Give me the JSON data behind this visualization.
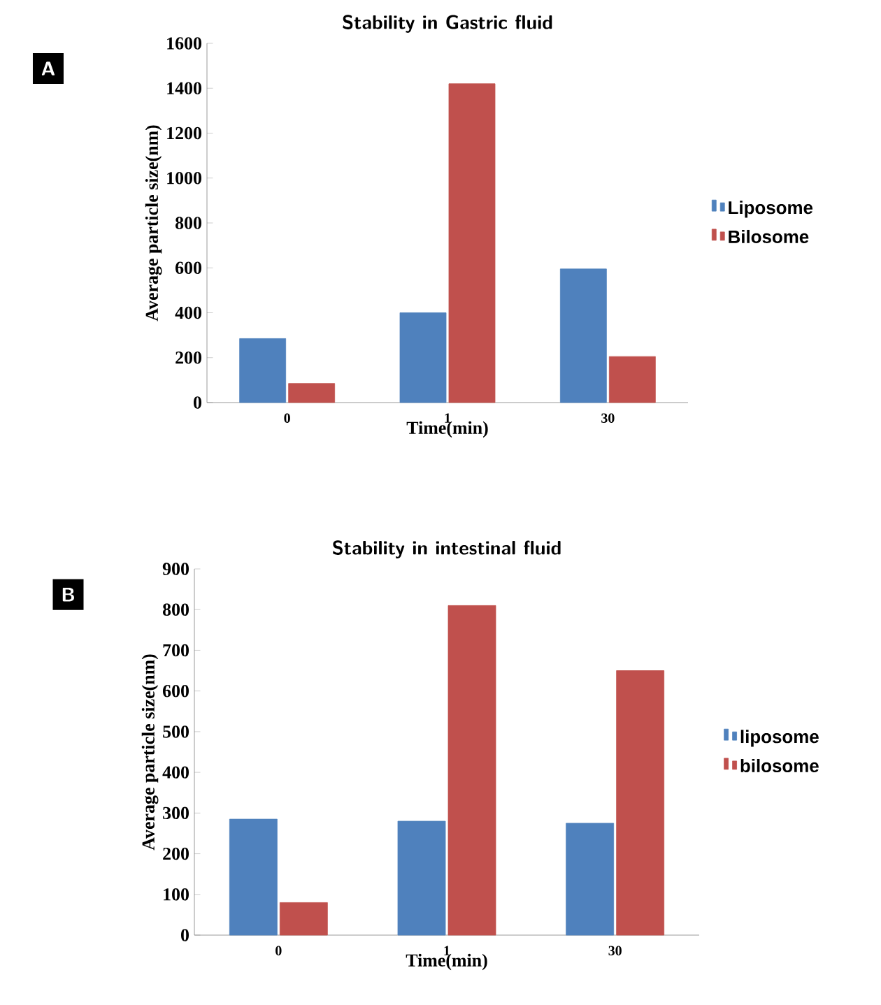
{
  "chart_data": [
    {
      "type": "bar",
      "title": "Stability in Gastric fluid",
      "xlabel": "Time(min)",
      "ylabel": "Average particle size(nm)",
      "categories": [
        "0",
        "1",
        "30"
      ],
      "series": [
        {
          "name": "Liposome",
          "color": "#4f81bd",
          "values": [
            285,
            400,
            595
          ]
        },
        {
          "name": "Bilosome",
          "color": "#c0504d",
          "values": [
            85,
            1420,
            205
          ]
        }
      ],
      "ylim": [
        0,
        1600
      ],
      "yticks": [
        0,
        200,
        400,
        600,
        800,
        1000,
        1200,
        1400,
        1600
      ],
      "legend": "right",
      "annotations": [
        "A"
      ]
    },
    {
      "type": "bar",
      "title": "Stability in intestinal fluid",
      "xlabel": "Time(min)",
      "ylabel": "Average particle size(nm)",
      "categories": [
        "0",
        "1",
        "30"
      ],
      "series": [
        {
          "name": "liposome",
          "color": "#4f81bd",
          "values": [
            285,
            280,
            275
          ]
        },
        {
          "name": "bilosome",
          "color": "#c0504d",
          "values": [
            80,
            810,
            650
          ]
        }
      ],
      "ylim": [
        0,
        900
      ],
      "yticks": [
        0,
        100,
        200,
        300,
        400,
        500,
        600,
        700,
        800,
        900
      ],
      "legend": "right",
      "annotations": [
        "B"
      ]
    }
  ]
}
